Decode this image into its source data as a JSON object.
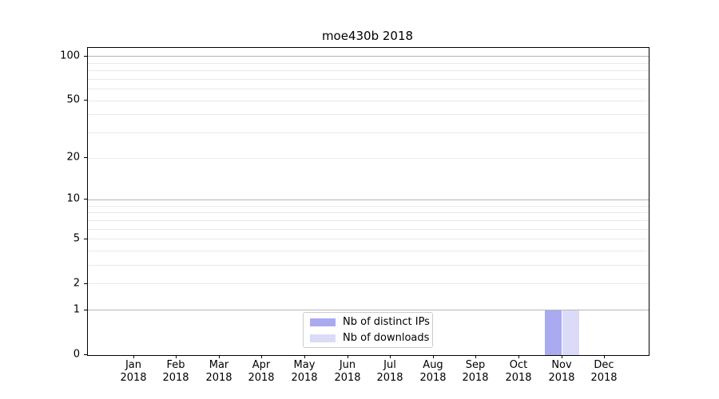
{
  "chart_data": {
    "type": "bar",
    "title": "moe430b 2018",
    "categories": [
      "Jan 2018",
      "Feb 2018",
      "Mar 2018",
      "Apr 2018",
      "May 2018",
      "Jun 2018",
      "Jul 2018",
      "Aug 2018",
      "Sep 2018",
      "Oct 2018",
      "Nov 2018",
      "Dec 2018"
    ],
    "series": [
      {
        "name": "Nb of distinct IPs",
        "color": "#aaaaf0",
        "values": [
          0,
          0,
          0,
          0,
          0,
          0,
          0,
          0,
          0,
          0,
          1,
          0
        ]
      },
      {
        "name": "Nb of downloads",
        "color": "#dbdbf8",
        "values": [
          0,
          0,
          0,
          0,
          0,
          0,
          0,
          0,
          0,
          0,
          1,
          0
        ]
      }
    ],
    "xlabel": "",
    "ylabel": "",
    "y_scale": "log10(1+x)",
    "ylim": [
      0,
      115
    ],
    "y_ticks": [
      0,
      1,
      2,
      5,
      10,
      20,
      50,
      100
    ],
    "y_major_gridlines": [
      1,
      10,
      100
    ],
    "y_minor_gridlines": [
      2,
      3,
      4,
      5,
      6,
      7,
      8,
      9,
      20,
      30,
      40,
      50,
      60,
      70,
      80,
      90
    ],
    "grid": true,
    "legend_position": "lower center",
    "colors": {
      "major_grid": "#b5b5b5",
      "minor_grid": "#e9e9e9",
      "axis": "#000000",
      "legend_border": "#cccccc",
      "background": "#ffffff"
    }
  }
}
